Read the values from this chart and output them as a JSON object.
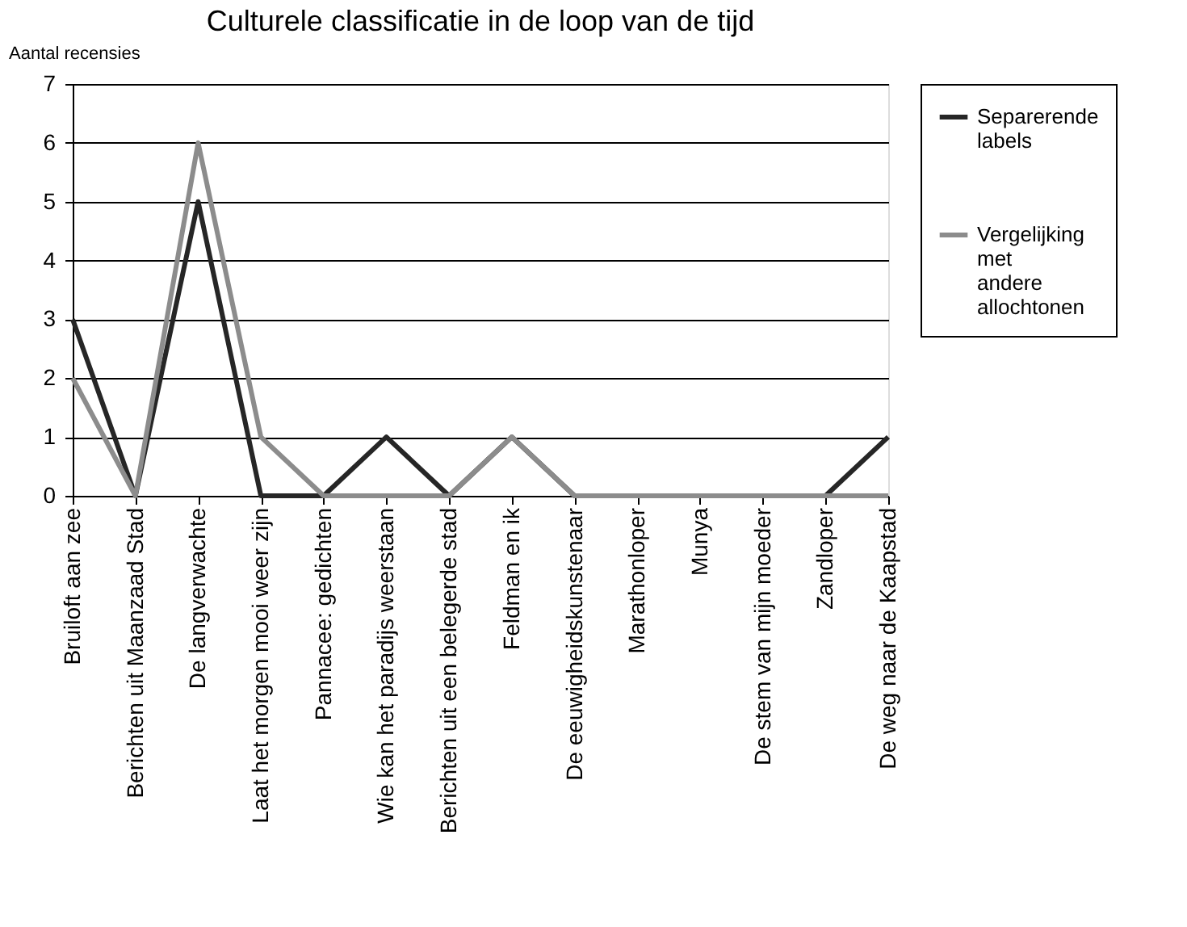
{
  "chart_data": {
    "type": "line",
    "title": "Culturele classificatie in de loop van de tijd",
    "ylabel": "Aantal recensies",
    "categories": [
      "Bruiloft aan zee",
      "Berichten uit Maanzaad Stad",
      "De langverwachte",
      "Laat het morgen mooi weer zijn",
      "Pannacee: gedichten",
      "Wie kan het paradijs weerstaan",
      "Berichten uit een belegerde stad",
      "Feldman en ik",
      "De eeuwigheidskunstenaar",
      "Marathonloper",
      "Munya",
      "De stem van mijn moeder",
      "Zandloper",
      "De weg naar de Kaapstad"
    ],
    "series": [
      {
        "name": "Separerende labels",
        "color": "#262626",
        "values": [
          3,
          0,
          5,
          0,
          0,
          1,
          0,
          1,
          0,
          0,
          0,
          0,
          0,
          1
        ]
      },
      {
        "name": "Vergelijking met andere allochtonen",
        "color": "#8c8c8c",
        "values": [
          2,
          0,
          6,
          1,
          0,
          0,
          0,
          1,
          0,
          0,
          0,
          0,
          0,
          0
        ]
      }
    ],
    "ylim": [
      0,
      7
    ],
    "yticks": [
      0,
      1,
      2,
      3,
      4,
      5,
      6,
      7
    ],
    "grid": "y",
    "legend": "right"
  }
}
